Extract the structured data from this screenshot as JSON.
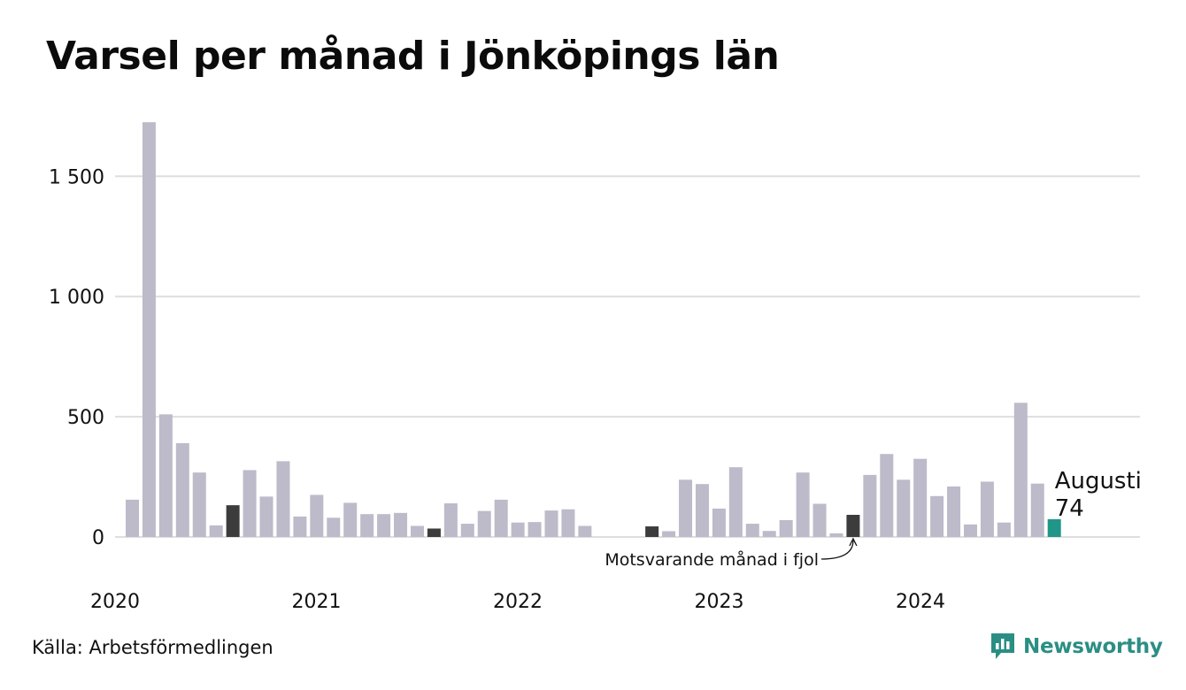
{
  "title": "Varsel per månad i Jönköpings län",
  "source": "Källa: Arbetsförmedlingen",
  "brand": {
    "name": "Newsworthy",
    "icon": "newsworthy-logo-icon",
    "color": "#2b8e84"
  },
  "colors": {
    "normal": "#bdbaca",
    "highlight": "#3c3c3c",
    "current": "#1f9688",
    "grid": "#dedede"
  },
  "chart_data": {
    "type": "bar",
    "title": "Varsel per månad i Jönköpings län",
    "xlabel": "",
    "ylabel": "",
    "ylim": [
      0,
      1750
    ],
    "yticks": [
      0,
      500,
      1000,
      1500
    ],
    "ytick_labels": [
      "0",
      "500",
      "1 000",
      "1 500"
    ],
    "x_year_labels": [
      "2020",
      "2021",
      "2022",
      "2023",
      "2024"
    ],
    "grid": "horizontal",
    "months": [
      "2020-01",
      "2020-02",
      "2020-03",
      "2020-04",
      "2020-05",
      "2020-06",
      "2020-07",
      "2020-08",
      "2020-09",
      "2020-10",
      "2020-11",
      "2020-12",
      "2021-01",
      "2021-02",
      "2021-03",
      "2021-04",
      "2021-05",
      "2021-06",
      "2021-07",
      "2021-08",
      "2021-09",
      "2021-10",
      "2021-11",
      "2021-12",
      "2022-01",
      "2022-02",
      "2022-03",
      "2022-04",
      "2022-05",
      "2022-06",
      "2022-07",
      "2022-08",
      "2022-09",
      "2022-10",
      "2022-11",
      "2022-12",
      "2023-01",
      "2023-02",
      "2023-03",
      "2023-04",
      "2023-05",
      "2023-06",
      "2023-07",
      "2023-08",
      "2023-09",
      "2023-10",
      "2023-11",
      "2023-12",
      "2024-01",
      "2024-02",
      "2024-03",
      "2024-04",
      "2024-05",
      "2024-06",
      "2024-07",
      "2024-08"
    ],
    "values": [
      155,
      1725,
      510,
      390,
      268,
      48,
      132,
      278,
      168,
      315,
      85,
      175,
      80,
      142,
      95,
      95,
      100,
      46,
      35,
      140,
      55,
      108,
      155,
      60,
      62,
      110,
      115,
      46,
      0,
      0,
      0,
      44,
      24,
      238,
      220,
      118,
      290,
      55,
      25,
      70,
      268,
      138,
      15,
      92,
      258,
      345,
      238,
      325,
      170,
      210,
      52,
      230,
      60,
      558,
      222,
      74
    ],
    "highlight_indices": [
      6,
      18,
      31,
      43
    ],
    "current_index": 55,
    "current_label": {
      "month": "Augusti",
      "value": "74"
    },
    "annotation": {
      "text": "Motsvarande månad i fjol",
      "index": 43
    }
  }
}
